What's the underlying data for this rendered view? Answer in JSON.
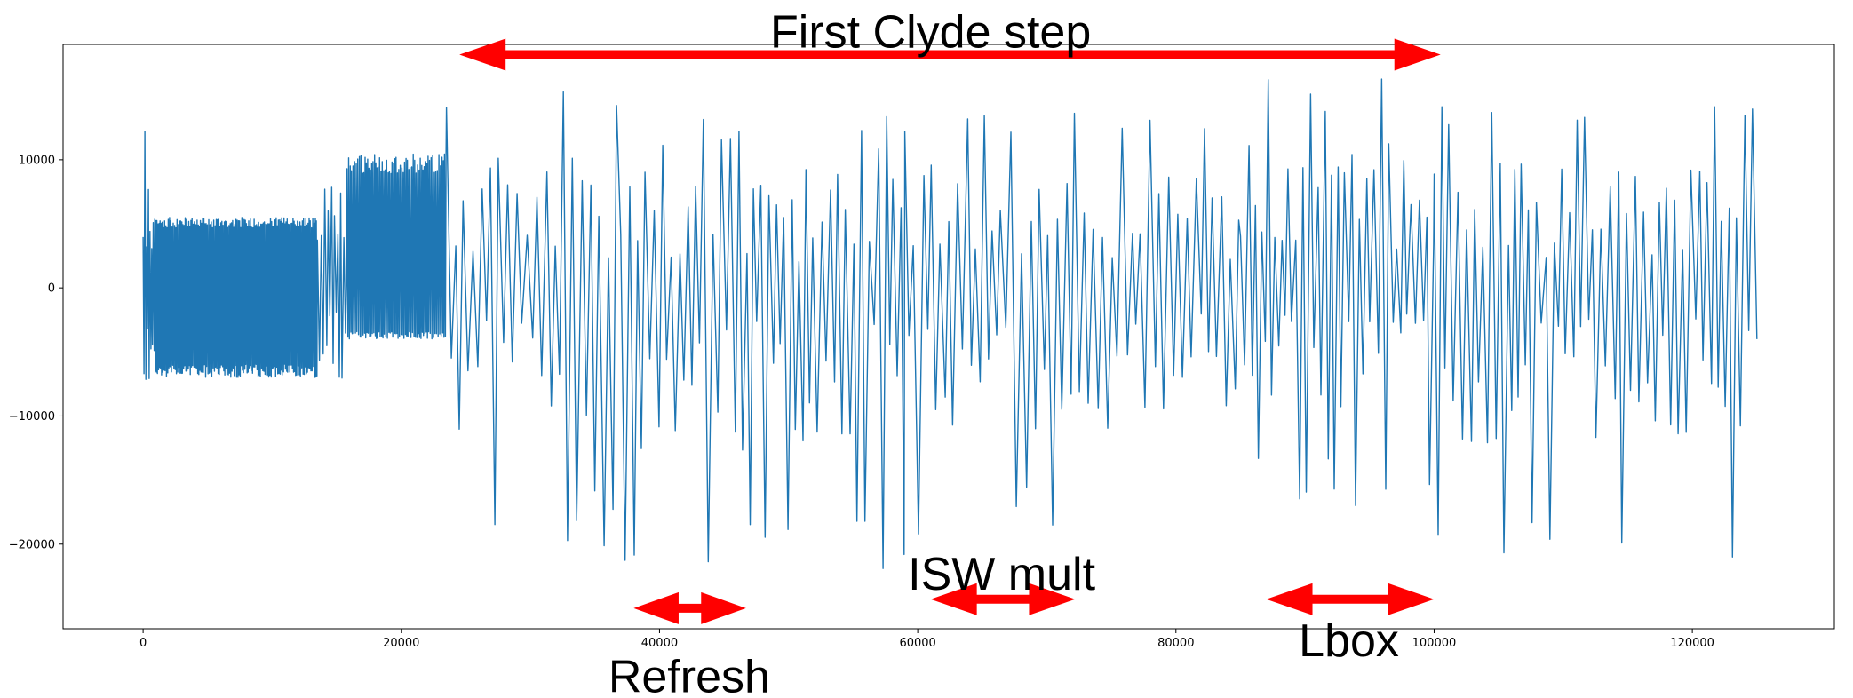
{
  "chart_data": {
    "type": "line",
    "title": "",
    "xlabel": "",
    "ylabel": "",
    "xlim": [
      -6200,
      131000
    ],
    "ylim": [
      -26600,
      19000
    ],
    "x_ticks": [
      0,
      20000,
      40000,
      60000,
      80000,
      100000,
      120000
    ],
    "x_tick_labels": [
      "0",
      "20000",
      "40000",
      "60000",
      "80000",
      "100000",
      "120000"
    ],
    "y_ticks": [
      10000,
      0,
      -10000,
      -20000
    ],
    "y_tick_labels": [
      "10000",
      "0",
      "−10000",
      "−20000"
    ],
    "grid": false,
    "legend": "none",
    "series_color": "#1f77b4",
    "annotation_color": "#ff0000",
    "x_end": 125000,
    "series": [
      {
        "segments": [
          {
            "x0": 0,
            "x1": 900,
            "kind": "spiky",
            "period": 130,
            "hi": 12500,
            "lo": -16500
          },
          {
            "x0": 900,
            "x1": 13500,
            "kind": "dense",
            "period": 90,
            "hi": 5500,
            "lo": -7000
          },
          {
            "x0": 13500,
            "x1": 15800,
            "kind": "spiky",
            "period": 260,
            "hi": 12000,
            "lo": -13500
          },
          {
            "x0": 15800,
            "x1": 23500,
            "kind": "dense",
            "period": 110,
            "hi": 10500,
            "lo": -4000
          },
          {
            "x0": 23500,
            "x1": 37000,
            "kind": "spiky",
            "period": 700,
            "hi": 15500,
            "lo": -20500
          },
          {
            "x0": 37000,
            "x1": 59000,
            "kind": "spiky",
            "period": 620,
            "hi": 13500,
            "lo": -24000
          },
          {
            "x0": 59000,
            "x1": 85000,
            "kind": "spiky",
            "period": 680,
            "hi": 14500,
            "lo": -20000
          },
          {
            "x0": 85000,
            "x1": 100000,
            "kind": "spiky",
            "period": 560,
            "hi": 16500,
            "lo": -17000
          },
          {
            "x0": 100000,
            "x1": 125000,
            "kind": "spiky",
            "period": 620,
            "hi": 14500,
            "lo": -22500
          }
        ]
      }
    ],
    "annotations": [
      {
        "text": "First Clyde step",
        "x_from": 24500,
        "x_to": 100500,
        "y": 18200,
        "text_x": 61000,
        "text_y": 20000,
        "text_pos": "above"
      },
      {
        "text": "Refresh",
        "x_from": 38000,
        "x_to": 46700,
        "y": -25000,
        "text_x": 42300,
        "text_y": -30300,
        "text_pos": "below"
      },
      {
        "text": "ISW mult",
        "x_from": 61000,
        "x_to": 72200,
        "y": -24300,
        "text_x": 66500,
        "text_y": -22300,
        "text_pos": "above"
      },
      {
        "text": "Lbox",
        "x_from": 87000,
        "x_to": 100000,
        "y": -24300,
        "text_x": 93400,
        "text_y": -27500,
        "text_pos": "below"
      }
    ]
  }
}
